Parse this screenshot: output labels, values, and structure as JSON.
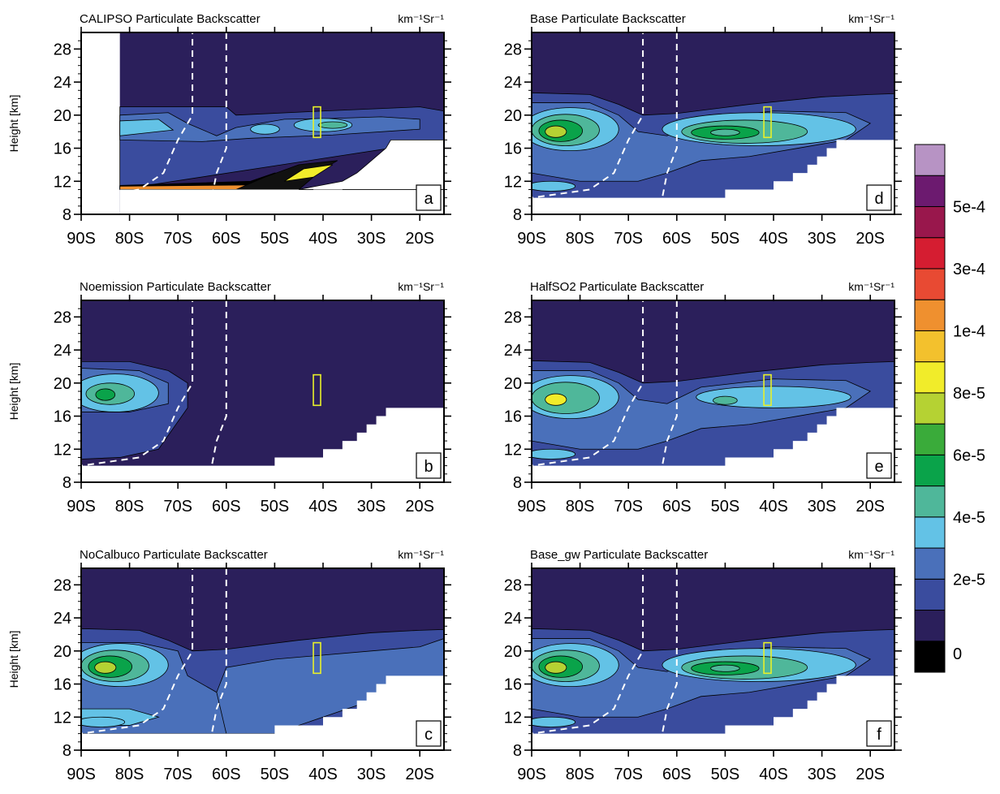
{
  "units_label": "km⁻¹Sr⁻¹",
  "colorbar": {
    "labels": [
      "5e-4",
      "3e-4",
      "1e-4",
      "8e-5",
      "6e-5",
      "4e-5",
      "2e-5",
      "0"
    ],
    "colors": [
      "#000000",
      "#2b1f5b",
      "#3a4c9e",
      "#4a70ba",
      "#63c2e6",
      "#4fb79a",
      "#0aa34a",
      "#3aab3a",
      "#b5d233",
      "#f1ec2a",
      "#f3c12d",
      "#ef902f",
      "#e84a33",
      "#d51d31",
      "#99174c",
      "#6c1a6f",
      "#b793c4"
    ]
  },
  "chart_data": [
    {
      "type": "heatmap",
      "title": "CALIPSO Particulate Backscatter",
      "panel_label": "a",
      "ylabel": "Height [km]",
      "x_ticks": [
        "90S",
        "80S",
        "70S",
        "60S",
        "50S",
        "40S",
        "30S",
        "20S"
      ],
      "y_ticks": [
        "28",
        "24",
        "20",
        "16",
        "12",
        "8"
      ],
      "xlim": [
        -90,
        -15
      ],
      "ylim": [
        8,
        30
      ],
      "data_xlim": [
        -82,
        -15
      ],
      "top_ceiling_lat": [
        -90,
        -15
      ],
      "notes_present": true
    },
    {
      "type": "heatmap",
      "title": "Noemission Particulate Backscatter",
      "panel_label": "b",
      "ylabel": "Height [km]",
      "x_ticks": [
        "90S",
        "80S",
        "70S",
        "60S",
        "50S",
        "40S",
        "30S",
        "20S"
      ],
      "y_ticks": [
        "28",
        "24",
        "20",
        "16",
        "12",
        "8"
      ],
      "xlim": [
        -90,
        -15
      ],
      "ylim": [
        8,
        30
      ]
    },
    {
      "type": "heatmap",
      "title": "NoCalbuco Particulate Backscatter",
      "panel_label": "c",
      "ylabel": "Height [km]",
      "x_ticks": [
        "90S",
        "80S",
        "70S",
        "60S",
        "50S",
        "40S",
        "30S",
        "20S"
      ],
      "y_ticks": [
        "28",
        "24",
        "20",
        "16",
        "12",
        "8"
      ],
      "xlim": [
        -90,
        -15
      ],
      "ylim": [
        8,
        30
      ]
    },
    {
      "type": "heatmap",
      "title": "Base Particulate Backscatter",
      "panel_label": "d",
      "ylabel": "",
      "x_ticks": [
        "90S",
        "80S",
        "70S",
        "60S",
        "50S",
        "40S",
        "30S",
        "20S"
      ],
      "y_ticks": [
        "28",
        "24",
        "20",
        "16",
        "12",
        "8"
      ],
      "xlim": [
        -90,
        -15
      ],
      "ylim": [
        8,
        30
      ]
    },
    {
      "type": "heatmap",
      "title": "HalfSO2 Particulate Backscatter",
      "panel_label": "e",
      "ylabel": "",
      "x_ticks": [
        "90S",
        "80S",
        "70S",
        "60S",
        "50S",
        "40S",
        "30S",
        "20S"
      ],
      "y_ticks": [
        "28",
        "24",
        "20",
        "16",
        "12",
        "8"
      ],
      "xlim": [
        -90,
        -15
      ],
      "ylim": [
        8,
        30
      ]
    },
    {
      "type": "heatmap",
      "title": "Base_gw Particulate Backscatter",
      "panel_label": "f",
      "ylabel": "",
      "x_ticks": [
        "90S",
        "80S",
        "70S",
        "60S",
        "50S",
        "40S",
        "30S",
        "20S"
      ],
      "y_ticks": [
        "28",
        "24",
        "20",
        "16",
        "12",
        "8"
      ],
      "xlim": [
        -90,
        -15
      ],
      "ylim": [
        8,
        30
      ]
    }
  ]
}
